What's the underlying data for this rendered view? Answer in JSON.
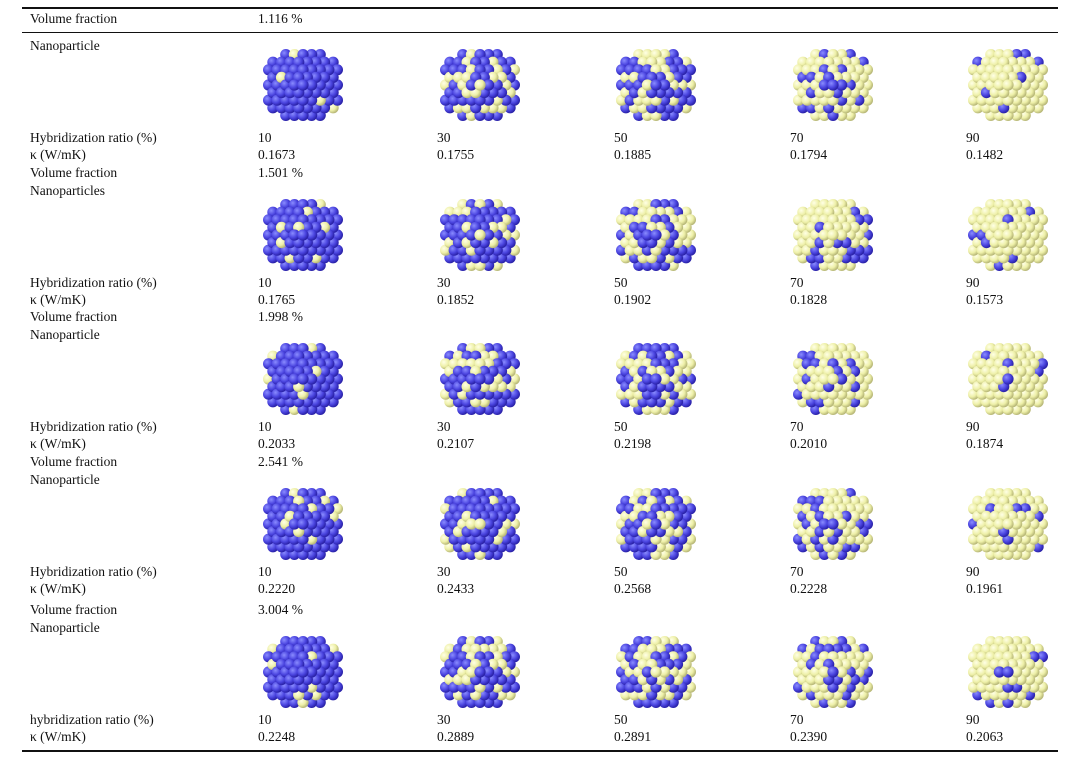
{
  "table": {
    "blocks": [
      {
        "volume_fraction_label": "Volume fraction",
        "volume_fraction": "1.116 %",
        "particle_label": "Nanoparticle",
        "ratio_label": "Hybridization ratio (%)",
        "kappa_label": "κ (W/mK)",
        "ratios": [
          10,
          30,
          50,
          70,
          90
        ],
        "kappa": [
          "0.1673",
          "0.1755",
          "0.1885",
          "0.1794",
          "0.1482"
        ]
      },
      {
        "volume_fraction_label": "Volume fraction",
        "volume_fraction": "1.501 %",
        "particle_label": "Nanoparticles",
        "ratio_label": "Hybridization ratio (%)",
        "kappa_label": "κ (W/mK)",
        "ratios": [
          10,
          30,
          50,
          70,
          90
        ],
        "kappa": [
          "0.1765",
          "0.1852",
          "0.1902",
          "0.1828",
          "0.1573"
        ]
      },
      {
        "volume_fraction_label": "Volume fraction",
        "volume_fraction": "1.998 %",
        "particle_label": "Nanoparticle",
        "ratio_label": "Hybridization ratio (%)",
        "kappa_label": "κ (W/mK)",
        "ratios": [
          10,
          30,
          50,
          70,
          90
        ],
        "kappa": [
          "0.2033",
          "0.2107",
          "0.2198",
          "0.2010",
          "0.1874"
        ]
      },
      {
        "volume_fraction_label": "Volume fraction",
        "volume_fraction": "2.541 %",
        "particle_label": "Nanoparticle",
        "ratio_label": "Hybridization ratio (%)",
        "kappa_label": "κ (W/mK)",
        "ratios": [
          10,
          30,
          50,
          70,
          90
        ],
        "kappa": [
          "0.2220",
          "0.2433",
          "0.2568",
          "0.2228",
          "0.1961"
        ]
      },
      {
        "volume_fraction_label": "Volume fraction",
        "volume_fraction": "3.004 %",
        "particle_label": "Nanoparticle",
        "ratio_label": "hybridization ratio (%)",
        "kappa_label": "κ (W/mK)",
        "ratios": [
          10,
          30,
          50,
          70,
          90
        ],
        "kappa": [
          "0.2248",
          "0.2889",
          "0.2891",
          "0.2390",
          "0.2063"
        ]
      }
    ]
  }
}
